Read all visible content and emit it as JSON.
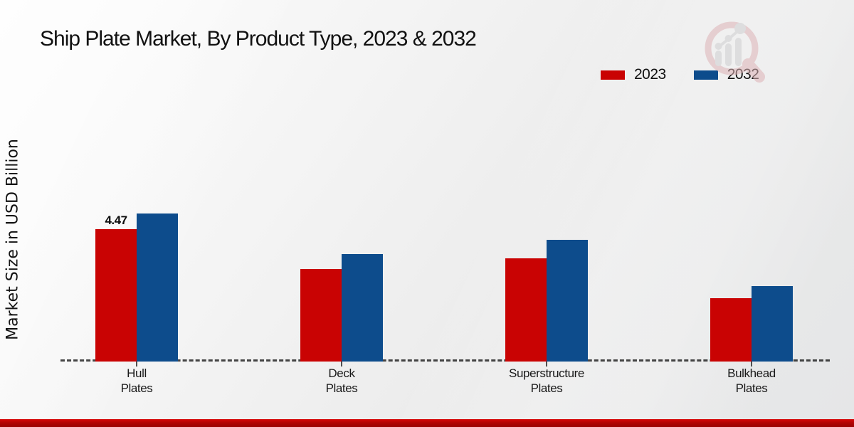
{
  "title": "Ship Plate Market, By Product Type, 2023 & 2032",
  "ylabel": "Market Size in USD Billion",
  "colors": {
    "red_2023": "#c90303",
    "blue_2032": "#0d4c8c",
    "bottom_strip": "#b20404"
  },
  "legend": [
    {
      "label": "2023",
      "color": "#c90303"
    },
    {
      "label": "2032",
      "color": "#0d4c8c"
    }
  ],
  "watermark_icon": "magnifier-bar-chart-logo",
  "chart_data": {
    "type": "bar",
    "categories": [
      "Hull\nPlates",
      "Deck\nPlates",
      "Superstructure\nPlates",
      "Bulkhead\nPlates"
    ],
    "series": [
      {
        "name": "2023",
        "color": "#c90303",
        "values": [
          4.47,
          3.14,
          3.5,
          2.15
        ]
      },
      {
        "name": "2032",
        "color": "#0d4c8c",
        "values": [
          5.02,
          3.63,
          4.13,
          2.56
        ]
      }
    ],
    "annotations": [
      {
        "series_index": 0,
        "category_index": 0,
        "text": "4.47"
      }
    ],
    "title": "Ship Plate Market, By Product Type, 2023 & 2032",
    "xlabel": "",
    "ylabel": "Market Size in USD Billion",
    "ylim": [
      0,
      8
    ],
    "grid": false,
    "legend_position": "top-right",
    "baseline_style": "dashed"
  }
}
